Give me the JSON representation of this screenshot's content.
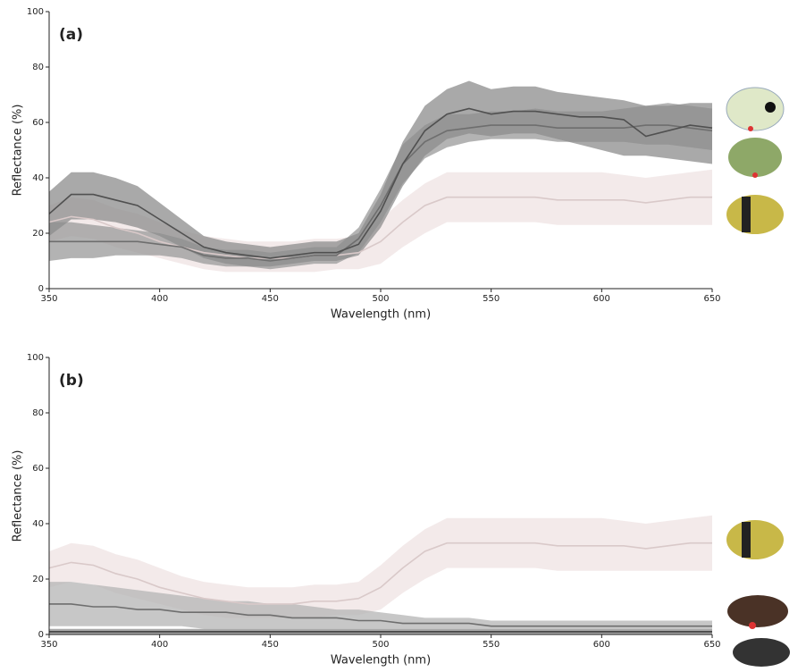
{
  "chart_data": [
    {
      "type": "line",
      "label": "(a)",
      "x_label": "Wavelength (nm)",
      "y_label": "Reflectance (%)",
      "x": [
        350,
        360,
        370,
        380,
        390,
        400,
        410,
        420,
        430,
        440,
        450,
        460,
        470,
        480,
        490,
        500,
        510,
        520,
        530,
        540,
        550,
        560,
        570,
        580,
        590,
        600,
        610,
        620,
        630,
        640,
        650
      ],
      "xlim": [
        350,
        650
      ],
      "xticks": [
        350,
        400,
        450,
        500,
        550,
        600,
        650
      ],
      "ylim": [
        0,
        100
      ],
      "yticks": [
        0,
        20,
        40,
        60,
        80,
        100
      ],
      "series": [
        {
          "color": "#d9c9c9",
          "band_color": "#efe3e3",
          "values": [
            24,
            26,
            25,
            22,
            20,
            17,
            15,
            13,
            12,
            11,
            11,
            11,
            12,
            12,
            13,
            17,
            24,
            30,
            33,
            33,
            33,
            33,
            33,
            32,
            32,
            32,
            32,
            31,
            32,
            33,
            33
          ],
          "lower": [
            17,
            19,
            18,
            15,
            13,
            11,
            9,
            7,
            6,
            6,
            6,
            6,
            6,
            7,
            7,
            9,
            15,
            20,
            24,
            24,
            24,
            24,
            24,
            23,
            23,
            23,
            23,
            23,
            23,
            23,
            23
          ],
          "upper": [
            30,
            33,
            32,
            29,
            27,
            24,
            21,
            19,
            18,
            17,
            17,
            17,
            18,
            18,
            19,
            25,
            32,
            38,
            42,
            42,
            42,
            42,
            42,
            42,
            42,
            42,
            41,
            40,
            41,
            42,
            43
          ]
        },
        {
          "color": "#6e6e6e",
          "band_color": "#9a9a9a",
          "values": [
            17,
            17,
            17,
            17,
            17,
            16,
            15,
            12,
            11,
            11,
            10,
            11,
            12,
            12,
            18,
            30,
            45,
            53,
            57,
            58,
            59,
            59,
            59,
            58,
            58,
            58,
            58,
            59,
            59,
            58,
            57
          ],
          "lower": [
            10,
            11,
            11,
            12,
            12,
            12,
            11,
            9,
            8,
            8,
            7,
            8,
            9,
            9,
            13,
            24,
            38,
            47,
            51,
            53,
            54,
            54,
            54,
            53,
            53,
            53,
            53,
            52,
            52,
            51,
            50
          ],
          "upper": [
            24,
            24,
            23,
            22,
            21,
            20,
            18,
            15,
            14,
            14,
            13,
            14,
            15,
            15,
            22,
            36,
            52,
            59,
            63,
            63,
            64,
            64,
            65,
            64,
            64,
            64,
            65,
            66,
            67,
            66,
            65
          ]
        },
        {
          "color": "#505050",
          "band_color": "#8c8c8c",
          "values": [
            27,
            34,
            34,
            32,
            30,
            25,
            20,
            15,
            13,
            12,
            11,
            12,
            13,
            13,
            16,
            28,
            45,
            57,
            63,
            65,
            63,
            64,
            64,
            63,
            62,
            62,
            61,
            55,
            57,
            59,
            58
          ],
          "lower": [
            19,
            25,
            25,
            24,
            22,
            19,
            15,
            11,
            9,
            8,
            8,
            9,
            10,
            10,
            12,
            22,
            37,
            48,
            54,
            56,
            55,
            56,
            56,
            54,
            52,
            50,
            48,
            48,
            47,
            46,
            45
          ],
          "upper": [
            35,
            42,
            42,
            40,
            37,
            31,
            25,
            19,
            17,
            16,
            15,
            16,
            17,
            17,
            20,
            34,
            53,
            66,
            72,
            75,
            72,
            73,
            73,
            71,
            70,
            69,
            68,
            66,
            66,
            67,
            67
          ]
        }
      ]
    },
    {
      "type": "line",
      "label": "(b)",
      "x_label": "Wavelength (nm)",
      "y_label": "Reflectance (%)",
      "x": [
        350,
        360,
        370,
        380,
        390,
        400,
        410,
        420,
        430,
        440,
        450,
        460,
        470,
        480,
        490,
        500,
        510,
        520,
        530,
        540,
        550,
        560,
        570,
        580,
        590,
        600,
        610,
        620,
        630,
        640,
        650
      ],
      "xlim": [
        350,
        650
      ],
      "xticks": [
        350,
        400,
        450,
        500,
        550,
        600,
        650
      ],
      "ylim": [
        0,
        100
      ],
      "yticks": [
        0,
        20,
        40,
        60,
        80,
        100
      ],
      "series": [
        {
          "color": "#d9c9c9",
          "band_color": "#efe3e3",
          "values": [
            24,
            26,
            25,
            22,
            20,
            17,
            15,
            13,
            12,
            11,
            11,
            11,
            12,
            12,
            13,
            17,
            24,
            30,
            33,
            33,
            33,
            33,
            33,
            32,
            32,
            32,
            32,
            31,
            32,
            33,
            33
          ],
          "lower": [
            17,
            19,
            18,
            15,
            13,
            11,
            9,
            7,
            6,
            6,
            6,
            6,
            6,
            7,
            7,
            9,
            15,
            20,
            24,
            24,
            24,
            24,
            24,
            23,
            23,
            23,
            23,
            23,
            23,
            23,
            23
          ],
          "upper": [
            30,
            33,
            32,
            29,
            27,
            24,
            21,
            19,
            18,
            17,
            17,
            17,
            18,
            18,
            19,
            25,
            32,
            38,
            42,
            42,
            42,
            42,
            42,
            42,
            42,
            42,
            41,
            40,
            41,
            42,
            43
          ]
        },
        {
          "color": "#6e6e6e",
          "band_color": "#b4b4b4",
          "values": [
            11,
            11,
            10,
            10,
            9,
            9,
            8,
            8,
            8,
            7,
            7,
            6,
            6,
            6,
            5,
            5,
            4,
            4,
            4,
            4,
            3,
            3,
            3,
            3,
            3,
            3,
            3,
            3,
            3,
            3,
            3
          ],
          "lower": [
            3,
            3,
            3,
            3,
            3,
            3,
            3,
            2,
            2,
            2,
            2,
            2,
            2,
            2,
            2,
            2,
            2,
            2,
            2,
            2,
            2,
            2,
            2,
            2,
            2,
            2,
            2,
            2,
            2,
            2,
            2
          ],
          "upper": [
            19,
            19,
            18,
            17,
            16,
            15,
            14,
            13,
            12,
            12,
            11,
            11,
            10,
            9,
            9,
            8,
            7,
            6,
            6,
            6,
            5,
            5,
            5,
            5,
            5,
            5,
            5,
            5,
            5,
            5,
            5
          ]
        },
        {
          "color": "#3c3c3c",
          "band_color": "#8c8c8c",
          "values": [
            1,
            1,
            1,
            1,
            1,
            1,
            1,
            1,
            1,
            1,
            1,
            1,
            1,
            1,
            1,
            1,
            1,
            1,
            1,
            1,
            1,
            1,
            1,
            1,
            1,
            1,
            1,
            1,
            1,
            1,
            1
          ],
          "lower": [
            0,
            0,
            0,
            0,
            0,
            0,
            0,
            0,
            0,
            0,
            0,
            0,
            0,
            0,
            0,
            0,
            0,
            0,
            0,
            0,
            0,
            0,
            0,
            0,
            0,
            0,
            0,
            0,
            0,
            0,
            0
          ],
          "upper": [
            2,
            2,
            2,
            2,
            2,
            2,
            2,
            2,
            2,
            2,
            2,
            2,
            2,
            2,
            2,
            2,
            2,
            2,
            2,
            2,
            2,
            2,
            2,
            2,
            2,
            2,
            2,
            2,
            2,
            2,
            2
          ]
        }
      ]
    }
  ]
}
